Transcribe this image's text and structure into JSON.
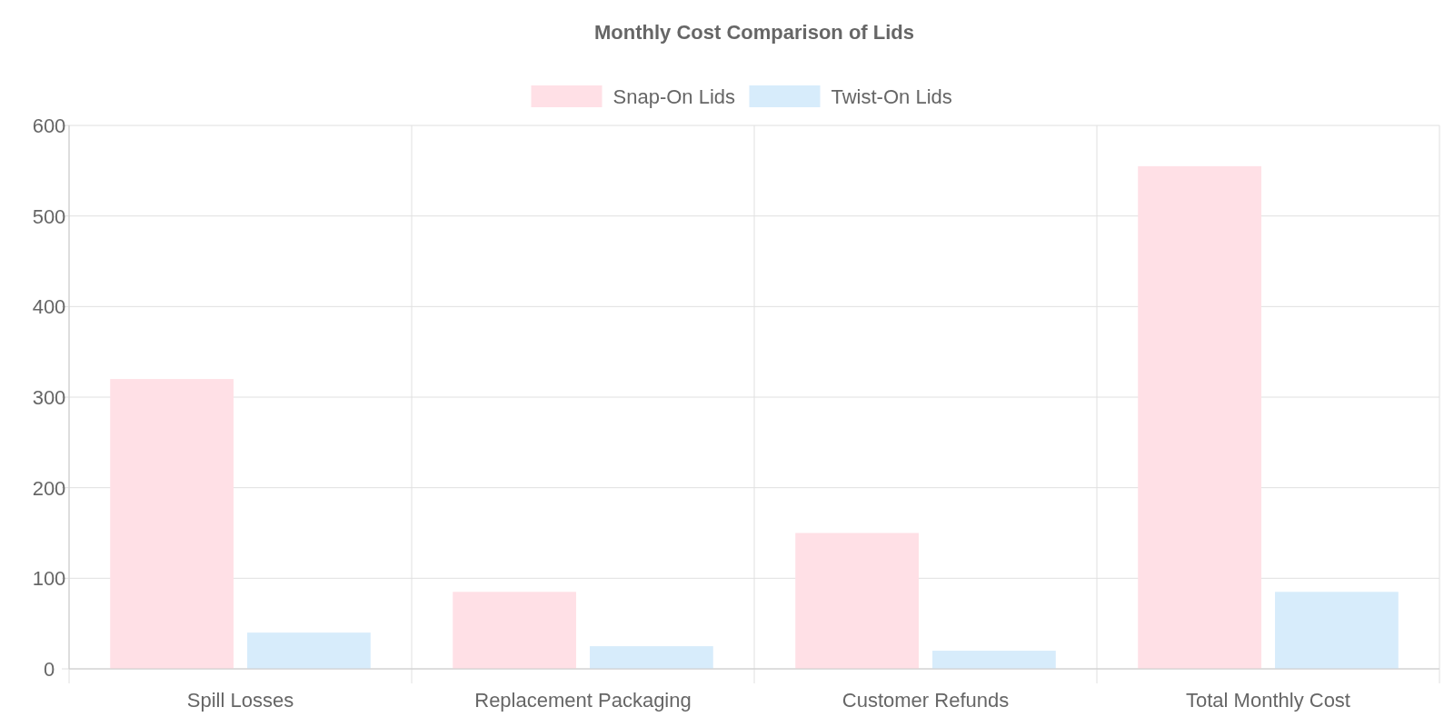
{
  "chart_data": {
    "type": "bar",
    "title": "Monthly Cost Comparison of Lids",
    "categories": [
      "Spill Losses",
      "Replacement Packaging",
      "Customer Refunds",
      "Total Monthly Cost"
    ],
    "series": [
      {
        "name": "Snap-On Lids",
        "color": "#ffe0e6",
        "values": [
          320,
          85,
          150,
          555
        ]
      },
      {
        "name": "Twist-On Lids",
        "color": "#d7ecfb",
        "values": [
          40,
          25,
          20,
          85
        ]
      }
    ],
    "ylim": [
      0,
      600
    ],
    "yticks": [
      0,
      100,
      200,
      300,
      400,
      500,
      600
    ],
    "grid": true,
    "legend": "top"
  }
}
